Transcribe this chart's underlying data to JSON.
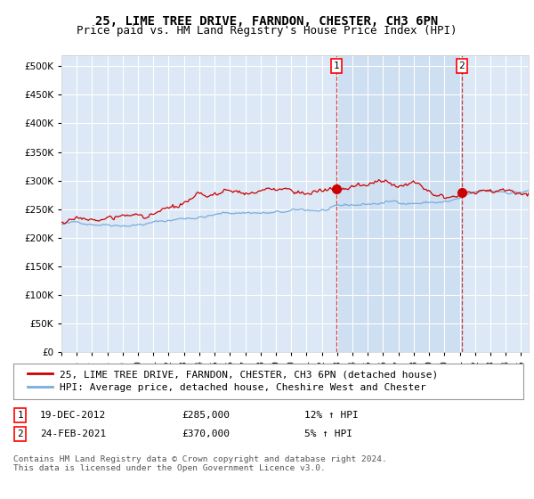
{
  "title": "25, LIME TREE DRIVE, FARNDON, CHESTER, CH3 6PN",
  "subtitle": "Price paid vs. HM Land Registry's House Price Index (HPI)",
  "ylim": [
    0,
    520000
  ],
  "yticks": [
    0,
    50000,
    100000,
    150000,
    200000,
    250000,
    300000,
    350000,
    400000,
    450000,
    500000
  ],
  "background_color": "#ffffff",
  "plot_bg_color": "#dce8f5",
  "grid_color": "#ffffff",
  "red_line_color": "#cc0000",
  "blue_line_color": "#7aaddc",
  "shade_color": "#c8dcf0",
  "sale1_date_num": 2012.97,
  "sale1_price": 285000,
  "sale2_date_num": 2021.14,
  "sale2_price": 370000,
  "legend_red_label": "25, LIME TREE DRIVE, FARNDON, CHESTER, CH3 6PN (detached house)",
  "legend_blue_label": "HPI: Average price, detached house, Cheshire West and Chester",
  "table_rows": [
    {
      "num": "1",
      "date": "19-DEC-2012",
      "price": "£285,000",
      "hpi": "12% ↑ HPI"
    },
    {
      "num": "2",
      "date": "24-FEB-2021",
      "price": "£370,000",
      "hpi": "5% ↑ HPI"
    }
  ],
  "footnote": "Contains HM Land Registry data © Crown copyright and database right 2024.\nThis data is licensed under the Open Government Licence v3.0.",
  "title_fontsize": 10,
  "subtitle_fontsize": 9,
  "tick_fontsize": 7.5,
  "legend_fontsize": 8,
  "table_fontsize": 8,
  "footnote_fontsize": 6.8
}
